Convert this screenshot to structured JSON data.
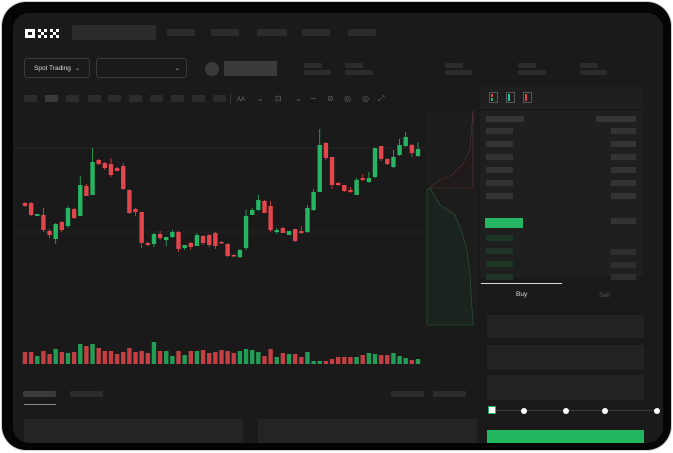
{
  "header": {
    "logo_text": "OKX",
    "market_select_label": "Spot Trading"
  },
  "toolbar": {
    "icons": [
      "indicator-icon",
      "chevron-down-icon",
      "draw-line-icon",
      "chevron-down-icon",
      "trend-icon",
      "pencil-icon",
      "camera-icon",
      "settings-icon",
      "fullscreen-icon"
    ]
  },
  "orderbook": {
    "view_icons": [
      "orderbook-both-icon",
      "orderbook-bids-icon",
      "orderbook-asks-icon"
    ]
  },
  "trade_form": {
    "tabs": [
      {
        "label": "Buy",
        "active": true
      },
      {
        "label": "Sell",
        "active": false
      }
    ],
    "slider_percent": 0,
    "slider_stops": [
      0,
      25,
      50,
      75,
      100
    ]
  },
  "colors": {
    "up": "#26b562",
    "down": "#e0464b",
    "background": "#1a1a1a",
    "buy_button": "#22b65e"
  },
  "chart_data": {
    "type": "candlestick",
    "ohlc": [
      [
        57,
        58,
        53,
        54
      ],
      [
        57,
        58,
        44,
        45
      ],
      [
        44,
        46,
        44,
        46
      ],
      [
        45,
        52,
        28,
        30
      ],
      [
        29,
        31,
        22,
        25
      ],
      [
        21,
        37,
        16,
        36
      ],
      [
        38,
        39,
        28,
        30
      ],
      [
        34,
        54,
        32,
        52
      ],
      [
        51,
        52,
        41,
        42
      ],
      [
        44,
        84,
        44,
        75
      ],
      [
        74,
        76,
        64,
        64
      ],
      [
        65,
        112,
        65,
        98
      ],
      [
        100,
        101,
        95,
        96
      ],
      [
        97,
        98,
        90,
        92
      ],
      [
        96,
        102,
        83,
        85
      ],
      [
        92,
        93,
        89,
        89
      ],
      [
        94,
        97,
        70,
        71
      ],
      [
        70,
        71,
        46,
        47
      ],
      [
        51,
        52,
        44,
        48
      ],
      [
        48,
        48,
        12,
        17
      ],
      [
        17,
        18,
        14,
        15
      ],
      [
        16,
        27,
        13,
        26
      ],
      [
        26,
        29,
        20,
        22
      ],
      [
        20,
        23,
        14,
        23
      ],
      [
        23,
        30,
        22,
        28
      ],
      [
        28,
        29,
        8,
        11
      ],
      [
        12,
        15,
        10,
        15
      ],
      [
        17,
        18,
        10,
        13
      ],
      [
        14,
        27,
        14,
        25
      ],
      [
        24,
        25,
        15,
        17
      ],
      [
        25,
        26,
        13,
        15
      ],
      [
        27,
        28,
        11,
        14
      ],
      [
        18,
        19,
        16,
        17
      ],
      [
        16,
        17,
        3,
        4
      ],
      [
        5,
        6,
        3,
        4
      ],
      [
        3,
        11,
        2,
        10
      ],
      [
        12,
        50,
        10,
        44
      ],
      [
        45,
        52,
        45,
        50
      ],
      [
        50,
        65,
        49,
        60
      ],
      [
        59,
        60,
        47,
        47
      ],
      [
        54,
        59,
        28,
        30
      ],
      [
        28,
        32,
        26,
        30
      ],
      [
        32,
        33,
        27,
        27
      ],
      [
        25,
        29,
        25,
        29
      ],
      [
        31,
        31,
        18,
        19
      ],
      [
        29,
        34,
        26,
        27
      ],
      [
        28,
        55,
        27,
        52
      ],
      [
        50,
        71,
        49,
        68
      ],
      [
        68,
        131,
        68,
        115
      ],
      [
        117,
        118,
        100,
        102
      ],
      [
        103,
        103,
        71,
        75
      ],
      [
        77,
        78,
        74,
        75
      ],
      [
        75,
        75,
        68,
        69
      ],
      [
        70,
        73,
        67,
        68
      ],
      [
        65,
        82,
        65,
        80
      ],
      [
        82,
        86,
        79,
        80
      ],
      [
        78,
        88,
        77,
        82
      ],
      [
        83,
        112,
        82,
        112
      ],
      [
        114,
        114,
        99,
        101
      ],
      [
        101,
        102,
        95,
        96
      ],
      [
        93,
        110,
        92,
        103
      ],
      [
        105,
        121,
        104,
        115
      ],
      [
        114,
        128,
        113,
        123
      ],
      [
        115,
        116,
        103,
        107
      ],
      [
        104,
        118,
        103,
        111
      ]
    ],
    "volume": [
      12,
      12,
      8,
      13,
      10,
      15,
      12,
      11,
      12,
      20,
      18,
      20,
      16,
      13,
      13,
      10,
      12,
      16,
      12,
      13,
      11,
      22,
      13,
      13,
      8,
      13,
      9,
      13,
      13,
      14,
      11,
      12,
      14,
      13,
      11,
      13,
      15,
      14,
      12,
      8,
      15,
      7,
      11,
      10,
      10,
      7,
      12,
      3,
      3,
      3,
      5,
      7,
      7,
      7,
      7,
      9,
      11,
      10,
      9,
      9,
      11,
      8,
      6,
      4,
      5
    ]
  }
}
